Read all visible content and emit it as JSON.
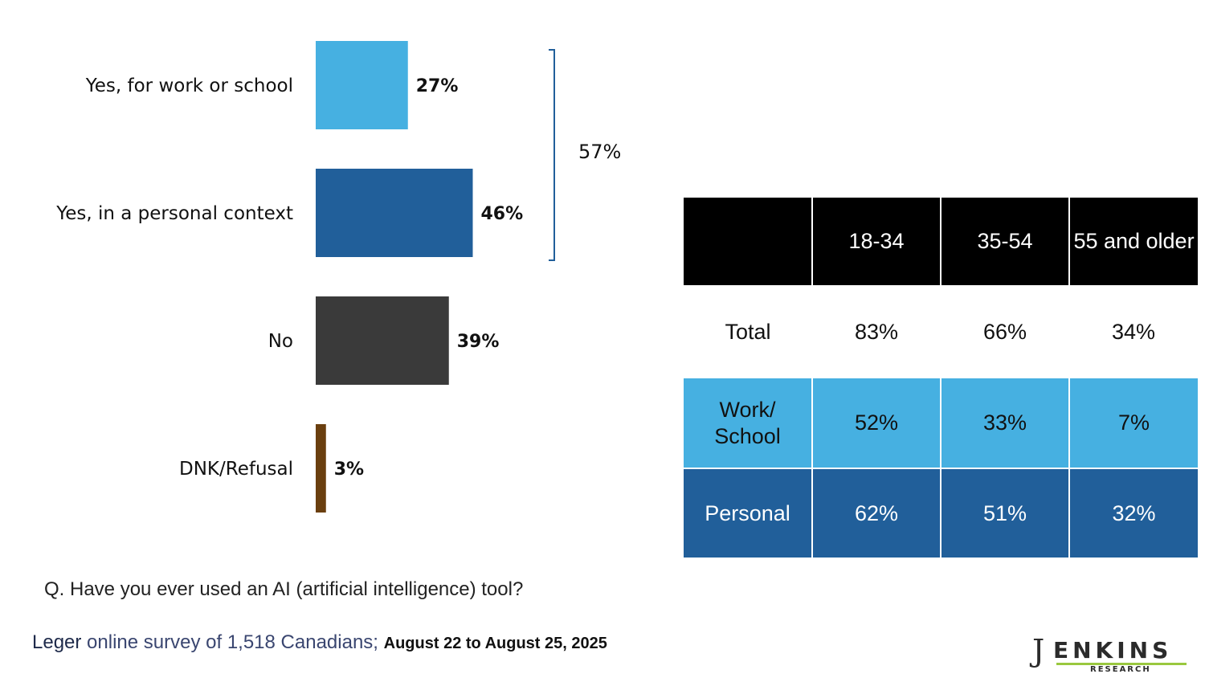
{
  "chart_data": [
    {
      "type": "bar",
      "orientation": "horizontal",
      "categories": [
        "Yes, for work or school",
        "Yes, in a personal context",
        "No",
        "DNK/Refusal"
      ],
      "values": [
        27,
        46,
        39,
        3
      ],
      "value_labels": [
        "27%",
        "46%",
        "39%",
        "3%"
      ],
      "colors": [
        "#46b0e1",
        "#215f9a",
        "#3a3a3a",
        "#6a3f0f"
      ],
      "bracket": {
        "spans": [
          "Yes, for work or school",
          "Yes, in a personal context"
        ],
        "value": 57,
        "label": "57%"
      },
      "xlim": [
        0,
        100
      ],
      "grid": false
    },
    {
      "type": "table",
      "columns": [
        "",
        "18-34",
        "35-54",
        "55 and older"
      ],
      "rows": [
        {
          "label": "Total",
          "values": [
            "83%",
            "66%",
            "34%"
          ]
        },
        {
          "label": "Work/ School",
          "values": [
            "52%",
            "33%",
            "7%"
          ]
        },
        {
          "label": "Personal",
          "values": [
            "62%",
            "51%",
            "32%"
          ]
        }
      ]
    }
  ],
  "question": "Q. Have you ever used an AI (artificial intelligence) tool?",
  "source": {
    "brand": "Leger",
    "description": " online survey of 1,518 Canadians; ",
    "dates": "August 22 to August 25, 2025"
  },
  "logo": {
    "letter": "J",
    "word": "ENKINS",
    "sub": "RESEARCH",
    "accent": "#9ac83f"
  }
}
